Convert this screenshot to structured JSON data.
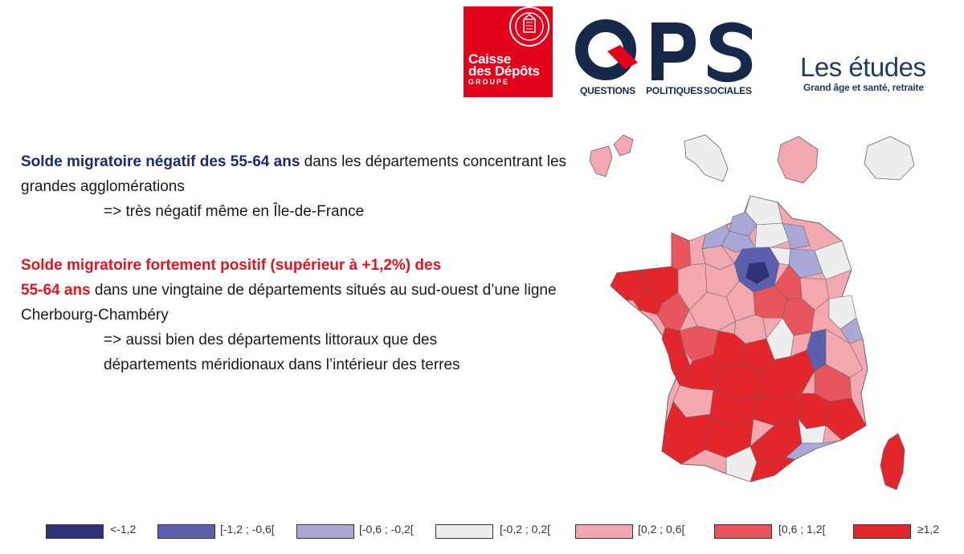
{
  "header": {
    "cdc": {
      "line1": "Caisse",
      "line2": "des Dépôts",
      "line3": "GROUPE"
    },
    "qps": {
      "letters": "QPS",
      "sub1": "QUESTIONS",
      "sub2": "POLITIQUES",
      "sub3": "SOCIALES"
    },
    "etudes": {
      "title": "Les études",
      "subtitle": "Grand âge et santé, retraite"
    }
  },
  "text": {
    "p1_bold": "Solde migratoire négatif des 55-64 ans",
    "p1_rest": "  dans les départements concentrant les grandes agglomérations",
    "p1_arrow": "=> très négatif même en Île-de-France",
    "p2_bold1": "Solde migratoire fortement positif (supérieur à +1,2%) des",
    "p2_bold2": "55-64 ans",
    "p2_rest": " dans une vingtaine de départements situés au sud-ouest d’une ligne Cherbourg-Chambéry",
    "p2_arrow1": "=> aussi bien des départements littoraux que des",
    "p2_arrow2": "départements méridionaux dans l’intérieur des terres"
  },
  "colors": {
    "c1": "#2b3278",
    "c2": "#5b5fad",
    "c3": "#a9a8d6",
    "c4": "#eeeeee",
    "c5": "#f2a8ae",
    "c6": "#e8555c",
    "c7": "#e3262b",
    "brand_red": "#e2001a",
    "brand_navy": "#16294a"
  },
  "legend": [
    {
      "label": "<-1,2",
      "color": "#2b3278"
    },
    {
      "label": "[-1,2 ; -0,6[",
      "color": "#5b5fad"
    },
    {
      "label": "[-0,6 ; -0,2[",
      "color": "#a9a8d6"
    },
    {
      "label": "[-0,2 ; 0,2[",
      "color": "#eeeeee"
    },
    {
      "label": "[0,2 ; 0,6[",
      "color": "#f2a8ae"
    },
    {
      "label": "[0,6 ; 1,2[",
      "color": "#e8555c"
    },
    {
      "label": "≥1,2",
      "color": "#e3262b"
    }
  ]
}
